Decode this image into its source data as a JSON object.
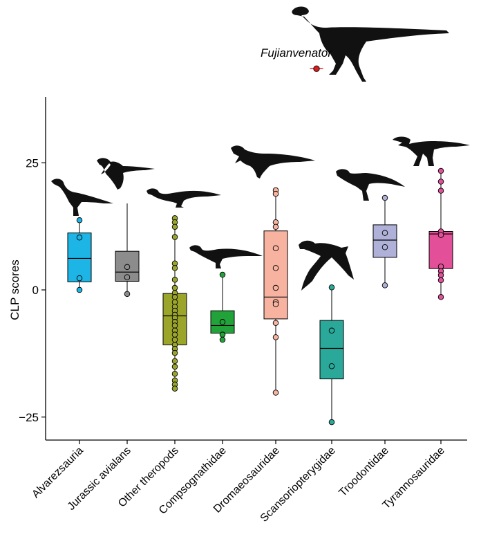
{
  "chart_data": {
    "type": "box",
    "title": "",
    "xlabel": "",
    "ylabel": "CLP scores",
    "ylim": [
      -29,
      38
    ],
    "yticks": [
      -25,
      0,
      25
    ],
    "categories": [
      "Alvarezsauria",
      "Jurassic avialans",
      "Other theropods",
      "Compsognathidae",
      "Dromaeosauridae",
      "Scansoriopterygidae",
      "Troodontidae",
      "Tyrannosauridae"
    ],
    "colors": [
      "#1db4e6",
      "#8c8c8c",
      "#9aa52a",
      "#22a33a",
      "#f7b3a0",
      "#2aa89a",
      "#b0b1d8",
      "#e34f99"
    ],
    "groups": [
      {
        "name": "Alvarezsauria",
        "min": 0,
        "q1": 1.6,
        "median": 6.2,
        "q3": 11.2,
        "max": 13.7,
        "points": [
          13.7,
          10.3,
          2.3,
          0
        ]
      },
      {
        "name": "Jurassic avialans",
        "min": -0.8,
        "q1": 1.7,
        "median": 3.5,
        "q3": 7.6,
        "max": 17.0,
        "points": [
          4.5,
          2.5,
          -0.8
        ]
      },
      {
        "name": "Other theropods",
        "min": -19.4,
        "q1": -10.8,
        "median": -5.1,
        "q3": -0.7,
        "max": 14.1,
        "points": [
          14.1,
          13.3,
          12.4,
          10.4,
          5.2,
          4.3,
          2.0,
          0.4,
          -0.6,
          -1.4,
          -2.4,
          -3.3,
          -4.1,
          -4.9,
          -5.5,
          -6.3,
          -7.0,
          -8.0,
          -8.8,
          -9.8,
          -10.8,
          -11.6,
          -12.4,
          -14.0,
          -15.1,
          -16.5,
          -17.8,
          -18.6,
          -19.4
        ]
      },
      {
        "name": "Compsognathidae",
        "min": -9.8,
        "q1": -8.5,
        "median": -7.0,
        "q3": -4.1,
        "max": 3.0,
        "points": [
          3.0,
          -6.3,
          -8.8,
          -9.8
        ]
      },
      {
        "name": "Dromaeosauridae",
        "min": -20.2,
        "q1": -5.7,
        "median": -1.4,
        "q3": 11.6,
        "max": 19.6,
        "points": [
          19.6,
          18.9,
          13.3,
          12.4,
          8.2,
          4.3,
          0.4,
          -2.4,
          -2.8,
          -6.5,
          -9.3,
          -20.2
        ]
      },
      {
        "name": "Scansoriopterygidae",
        "min": -26.0,
        "q1": -17.5,
        "median": -11.5,
        "q3": -6.0,
        "max": 0.5,
        "points": [
          0.5,
          -8.0,
          -15.0,
          -26.0
        ]
      },
      {
        "name": "Troodontidae",
        "min": 0.9,
        "q1": 6.4,
        "median": 9.8,
        "q3": 12.8,
        "max": 18.1,
        "points": [
          18.1,
          11.2,
          8.4,
          0.9
        ]
      },
      {
        "name": "Tyrannosauridae",
        "min": -1.4,
        "q1": 4.2,
        "median": 11.0,
        "q3": 11.5,
        "max": 23.4,
        "points": [
          23.4,
          21.3,
          19.5,
          11.5,
          10.8,
          4.6,
          3.7,
          2.9,
          1.9,
          -1.4
        ]
      }
    ],
    "annotation": {
      "label": "Fujianvenator",
      "value": 43.5,
      "error": 1.3,
      "color": "#d81e1e"
    }
  }
}
